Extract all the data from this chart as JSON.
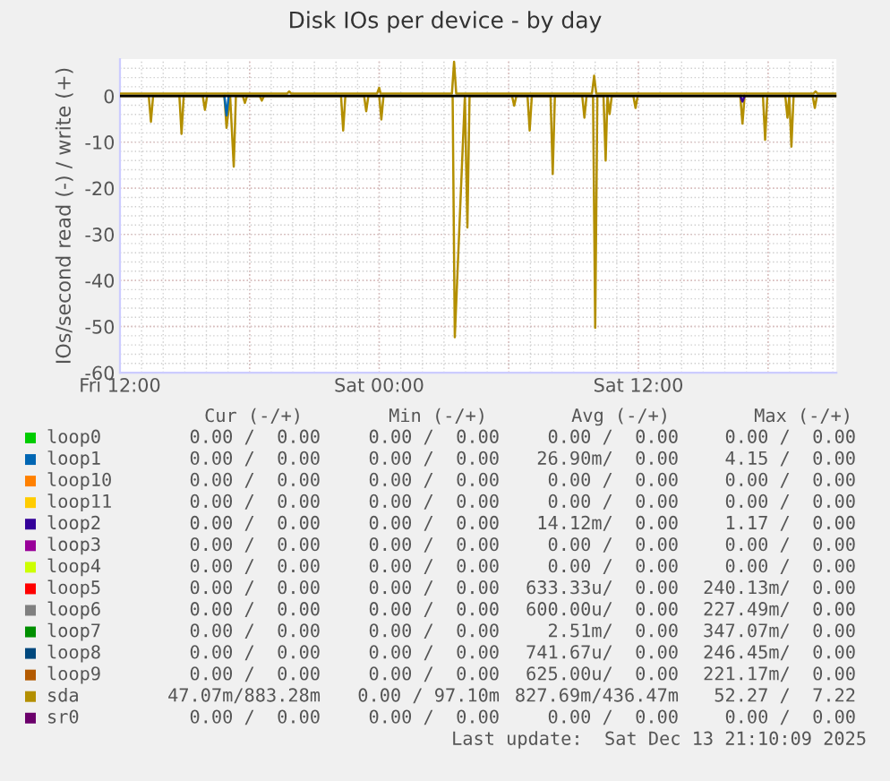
{
  "chart_data": {
    "type": "line",
    "title": "Disk IOs per device - by day",
    "ylabel": "IOs/second read (-) / write (+)",
    "xlim": [
      "2025-12-12T12:00",
      "2025-12-13T21:10"
    ],
    "xticks": [
      {
        "value": "2025-12-12T12:00",
        "label": "Fri 12:00"
      },
      {
        "value": "2025-12-12T18:00",
        "label": null
      },
      {
        "value": "2025-12-13T00:00",
        "label": "Sat 00:00"
      },
      {
        "value": "2025-12-13T06:00",
        "label": null
      },
      {
        "value": "2025-12-13T12:00",
        "label": "Sat 12:00"
      },
      {
        "value": "2025-12-13T18:00",
        "label": null
      }
    ],
    "ylim": [
      -60,
      8
    ],
    "yticks": [
      -60,
      -50,
      -40,
      -30,
      -20,
      -10,
      0
    ],
    "grid": true,
    "legend": "bottom",
    "ref_lines": [
      {
        "axis": "y",
        "value": 0,
        "color": "#000000"
      }
    ],
    "series": [
      {
        "name": "loop0",
        "color": "#00cc00"
      },
      {
        "name": "loop1",
        "color": "#0066b3",
        "x": [
          "2025-12-12T16:50",
          "2025-12-12T16:56",
          "2025-12-12T17:02"
        ],
        "values": [
          0,
          -4.2,
          0
        ]
      },
      {
        "name": "loop10",
        "color": "#ff8000"
      },
      {
        "name": "loop11",
        "color": "#ffcc00"
      },
      {
        "name": "loop2",
        "color": "#330099",
        "x": [
          "2025-12-13T16:43",
          "2025-12-13T16:49",
          "2025-12-13T16:55"
        ],
        "values": [
          0,
          -1.2,
          0
        ]
      },
      {
        "name": "loop3",
        "color": "#990099"
      },
      {
        "name": "loop4",
        "color": "#ccff00"
      },
      {
        "name": "loop5",
        "color": "#ff0000"
      },
      {
        "name": "loop6",
        "color": "#808080"
      },
      {
        "name": "loop7",
        "color": "#008f00"
      },
      {
        "name": "loop8",
        "color": "#00487d"
      },
      {
        "name": "loop9",
        "color": "#b35a00"
      },
      {
        "name": "sda",
        "color": "#b38f00",
        "x": [
          "2025-12-12T12:00",
          "2025-12-12T13:20",
          "2025-12-12T13:26",
          "2025-12-12T13:32",
          "2025-12-12T14:45",
          "2025-12-12T14:51",
          "2025-12-12T14:57",
          "2025-12-12T15:50",
          "2025-12-12T15:56",
          "2025-12-12T16:02",
          "2025-12-12T16:50",
          "2025-12-12T16:56",
          "2025-12-12T17:06",
          "2025-12-12T17:16",
          "2025-12-12T17:22",
          "2025-12-12T17:41",
          "2025-12-12T17:47",
          "2025-12-12T17:53",
          "2025-12-12T18:28",
          "2025-12-12T18:34",
          "2025-12-12T18:40",
          "2025-12-12T22:14",
          "2025-12-12T22:20",
          "2025-12-12T22:26",
          "2025-12-12T23:18",
          "2025-12-12T23:24",
          "2025-12-12T23:30",
          "2025-12-13T00:00",
          "2025-12-13T00:06",
          "2025-12-13T00:12",
          "2025-12-13T03:24",
          "2025-12-13T03:30",
          "2025-12-13T03:58",
          "2025-12-13T04:05",
          "2025-12-13T04:11",
          "2025-12-13T06:09",
          "2025-12-13T06:15",
          "2025-12-13T06:21",
          "2025-12-13T06:52",
          "2025-12-13T06:58",
          "2025-12-13T07:04",
          "2025-12-13T07:56",
          "2025-12-13T08:02",
          "2025-12-13T08:08",
          "2025-12-13T09:24",
          "2025-12-13T09:30",
          "2025-12-13T09:36",
          "2025-12-13T09:54",
          "2025-12-13T10:00",
          "2025-12-13T10:06",
          "2025-12-13T10:23",
          "2025-12-13T10:29",
          "2025-12-13T10:34",
          "2025-12-13T10:40",
          "2025-12-13T10:46",
          "2025-12-13T11:46",
          "2025-12-13T11:52",
          "2025-12-13T11:58",
          "2025-12-13T16:43",
          "2025-12-13T16:49",
          "2025-12-13T16:55",
          "2025-12-13T17:46",
          "2025-12-13T17:52",
          "2025-12-13T17:58",
          "2025-12-13T18:48",
          "2025-12-13T18:54",
          "2025-12-13T18:59",
          "2025-12-13T19:05",
          "2025-12-13T19:11",
          "2025-12-13T20:04",
          "2025-12-13T20:10",
          "2025-12-13T20:16",
          "2025-12-13T21:10"
        ],
        "values": [
          0,
          0,
          -5.6,
          0,
          0,
          -8.2,
          0,
          0,
          -3,
          0,
          0,
          -6.9,
          0,
          -15.3,
          0,
          0,
          -1.5,
          0,
          0,
          -1,
          0,
          0,
          -7.5,
          0,
          0,
          -3.3,
          0,
          0,
          -5.1,
          0,
          0,
          -52.3,
          0,
          -28.5,
          0,
          0,
          -2.1,
          0,
          0,
          -7.5,
          0,
          0,
          -16.9,
          0,
          0,
          -4.7,
          0,
          0,
          -50.3,
          0,
          0,
          -14,
          0,
          -3.9,
          0,
          0,
          -2.6,
          0,
          0,
          -6,
          0,
          0,
          -9.5,
          0,
          0,
          -4.7,
          0,
          -11,
          0,
          0,
          -2.6,
          0,
          0
        ]
      },
      {
        "color": "#b38f00",
        "x": [
          "2025-12-12T12:00",
          "2025-12-12T19:44",
          "2025-12-12T19:50",
          "2025-12-12T19:56",
          "2025-12-12T23:54",
          "2025-12-13T00:00",
          "2025-12-13T00:04",
          "2025-12-13T03:22",
          "2025-12-13T03:28",
          "2025-12-13T03:34",
          "2025-12-13T09:51",
          "2025-12-13T09:57",
          "2025-12-13T10:03",
          "2025-12-13T20:06",
          "2025-12-13T20:12",
          "2025-12-13T20:18",
          "2025-12-13T21:10"
        ],
        "values": [
          0.5,
          0.5,
          1,
          0.5,
          0.5,
          1.8,
          0.5,
          0.5,
          7.4,
          0.5,
          0.5,
          4.4,
          0.5,
          0.5,
          1,
          0.5,
          0.5
        ]
      },
      {
        "name": "sr0",
        "color": "#6b006b"
      }
    ],
    "annotations": [
      "Cur (-/+)",
      "Min (-/+)",
      "Avg (-/+)",
      "Max (-/+)",
      "0.00 /  0.00",
      "0.00 /  0.00",
      "0.00 /  0.00",
      "0.00 /  0.00",
      "0.00 /  0.00",
      "0.00 /  0.00",
      "26.90m/  0.00",
      "4.15 /  0.00",
      "0.00 /  0.00",
      "0.00 /  0.00",
      "0.00 /  0.00",
      "0.00 /  0.00",
      "0.00 /  0.00",
      "0.00 /  0.00",
      "0.00 /  0.00",
      "0.00 /  0.00",
      "0.00 /  0.00",
      "0.00 /  0.00",
      "14.12m/  0.00",
      "1.17 /  0.00",
      "0.00 /  0.00",
      "0.00 /  0.00",
      "0.00 /  0.00",
      "0.00 /  0.00",
      "0.00 /  0.00",
      "0.00 /  0.00",
      "0.00 /  0.00",
      "0.00 /  0.00",
      "0.00 /  0.00",
      "0.00 /  0.00",
      "633.33u/  0.00",
      "240.13m/  0.00",
      "0.00 /  0.00",
      "0.00 /  0.00",
      "600.00u/  0.00",
      "227.49m/  0.00",
      "0.00 /  0.00",
      "0.00 /  0.00",
      "2.51m/  0.00",
      "347.07m/  0.00",
      "0.00 /  0.00",
      "0.00 /  0.00",
      "741.67u/  0.00",
      "246.45m/  0.00",
      "0.00 /  0.00",
      "0.00 /  0.00",
      "625.00u/  0.00",
      "221.17m/  0.00",
      "47.07m/883.28m",
      "0.00 / 97.10m",
      "827.69m/436.47m",
      "52.27 /  7.22",
      "0.00 /  0.00",
      "0.00 /  0.00",
      "0.00 /  0.00",
      "0.00 /  0.00",
      "Last update:  Sat Dec 13 21:10:09 2025"
    ]
  }
}
